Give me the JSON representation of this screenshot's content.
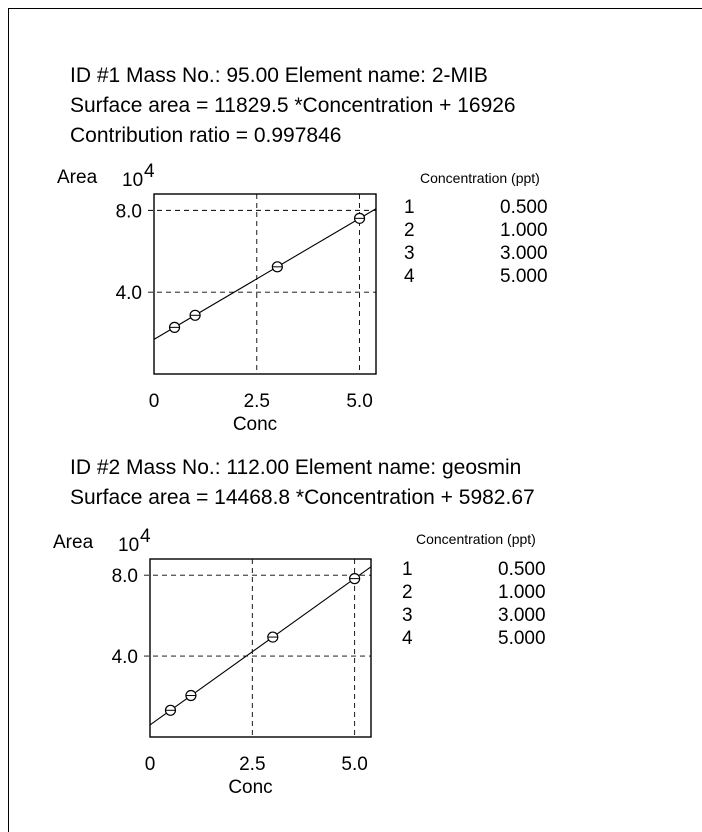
{
  "colors": {
    "ink": "#000000",
    "background": "#ffffff"
  },
  "calibrations": [
    {
      "header_lines": [
        "ID #1 Mass No.: 95.00 Element name: 2-MIB",
        "Surface area = 11829.5 *Concentration + 16926",
        "Contribution ratio = 0.997846"
      ],
      "ylabel": "Area",
      "yexp": "10",
      "yexp_power": "4",
      "xlabel": "Conc",
      "xticks": [
        "0",
        "2.5",
        "5.0"
      ],
      "yticks": [
        "4.0",
        "8.0"
      ],
      "table_title": "Concentration (ppt)",
      "table": [
        {
          "n": "1",
          "conc": "0.500"
        },
        {
          "n": "2",
          "conc": "1.000"
        },
        {
          "n": "3",
          "conc": "3.000"
        },
        {
          "n": "4",
          "conc": "5.000"
        }
      ]
    },
    {
      "header_lines": [
        "ID #2 Mass No.: 112.00  Element name: geosmin",
        "Surface area = 14468.8 *Concentration + 5982.67"
      ],
      "ylabel": "Area",
      "yexp": "10",
      "yexp_power": "4",
      "xlabel": "Conc",
      "xticks": [
        "0",
        "2.5",
        "5.0"
      ],
      "yticks": [
        "4.0",
        "8.0"
      ],
      "table_title": "Concentration (ppt)",
      "table": [
        {
          "n": "1",
          "conc": "0.500"
        },
        {
          "n": "2",
          "conc": "1.000"
        },
        {
          "n": "3",
          "conc": "3.000"
        },
        {
          "n": "4",
          "conc": "5.000"
        }
      ]
    }
  ],
  "chart_data": [
    {
      "type": "scatter",
      "title": "ID #1 Mass No.: 95.00 Element name: 2-MIB",
      "xlabel": "Conc",
      "ylabel": "Area",
      "xlim": [
        0,
        5.4
      ],
      "ylim": [
        0,
        8.0
      ],
      "xticks": [
        0,
        2.5,
        5.0
      ],
      "yticks": [
        4.0,
        8.0
      ],
      "grid": true,
      "series": [
        {
          "x": [
            0.5,
            1.0,
            3.0,
            5.0
          ],
          "y": [
            2.28,
            2.87,
            5.24,
            7.61
          ]
        }
      ],
      "fit_line": {
        "slope": 1.18295,
        "intercept": 1.6926
      }
    },
    {
      "type": "scatter",
      "title": "ID #2 Mass No.: 112.00  Element name: geosmin",
      "xlabel": "Conc",
      "ylabel": "Area",
      "xlim": [
        0,
        5.4
      ],
      "ylim": [
        0,
        8.0
      ],
      "xticks": [
        0,
        2.5,
        5.0
      ],
      "yticks": [
        4.0,
        8.0
      ],
      "grid": true,
      "series": [
        {
          "x": [
            0.5,
            1.0,
            3.0,
            5.0
          ],
          "y": [
            1.32,
            2.05,
            4.94,
            7.83
          ]
        }
      ],
      "fit_line": {
        "slope": 1.44688,
        "intercept": 0.598267
      }
    }
  ]
}
